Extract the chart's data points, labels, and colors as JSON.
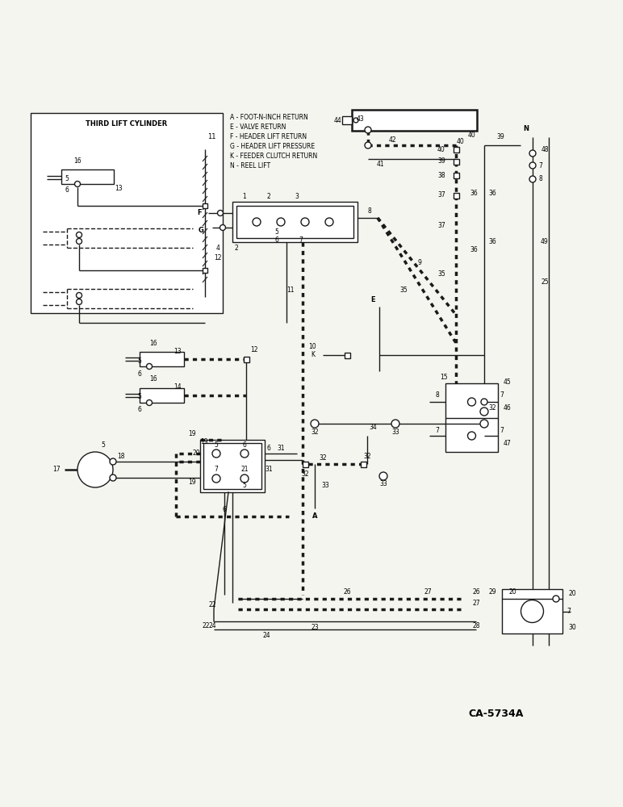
{
  "background_color": "#f5f5f0",
  "line_color": "#1a1a1a",
  "legend_items": [
    "A - FOOT-N-INCH RETURN",
    "E - VALVE RETURN",
    "F - HEADER LIFT RETURN",
    "G - HEADER LIFT PRESSURE",
    "K - FEEDER CLUTCH RETURN",
    "N - REEL LIFT"
  ],
  "inset_title": "THIRD LIFT CYLINDER",
  "diagram_ref": "CA-5734A",
  "figsize": [
    7.72,
    10.0
  ],
  "dpi": 100,
  "xlim": [
    0,
    772
  ],
  "ylim": [
    0,
    1000
  ]
}
